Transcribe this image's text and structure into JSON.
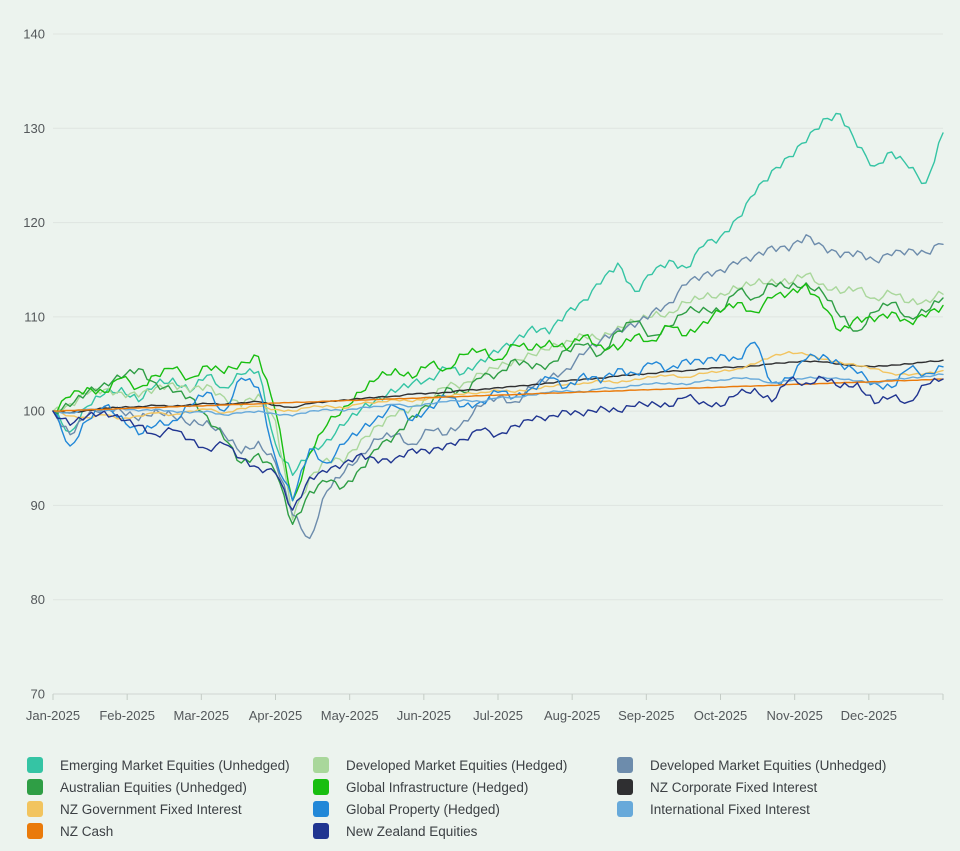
{
  "chart": {
    "background_color": "#ecf3ee",
    "grid_color": "#dfe5e0",
    "axis_line_color": "#cfd6d1",
    "tick_color": "#c4ccc6",
    "axis_label_color": "#54585b",
    "legend_label_color": "#3c4044"
  },
  "chart_data": {
    "type": "line",
    "title": "",
    "xlabel": "",
    "ylabel": "",
    "grid": "horizontal",
    "legend_position": "bottom",
    "ylim": [
      70,
      140
    ],
    "y_axis": {
      "min": 70,
      "max": 140,
      "step": 10,
      "tick_labels": [
        "140",
        "130",
        "120",
        "110",
        "100",
        "90",
        "80",
        "70"
      ]
    },
    "x_axis": {
      "tick_labels": [
        "Jan-2025",
        "Feb-2025",
        "Mar-2025",
        "Apr-2025",
        "May-2025",
        "Jun-2025",
        "Jul-2025",
        "Aug-2025",
        "Sep-2025",
        "Oct-2025",
        "Nov-2025",
        "Dec-2025"
      ]
    },
    "sampling": "weekly estimates, 53 points Jan-2025 through Dec-2025, index base 100",
    "series": [
      {
        "name": "Emerging Market Equities (Unhedged)",
        "color": "#35c4a4",
        "values": [
          100,
          97.8,
          100.5,
          101.8,
          102.5,
          101.0,
          102.8,
          103.5,
          102.0,
          103.8,
          102.5,
          103.9,
          104.2,
          96.5,
          93.2,
          95.5,
          97.0,
          98.5,
          100.2,
          101.5,
          102.0,
          103.0,
          103.5,
          104.5,
          104.0,
          105.5,
          106.2,
          107.5,
          109.0,
          108.2,
          110.5,
          111.8,
          113.5,
          115.7,
          112.7,
          114.5,
          116.0,
          115.2,
          117.5,
          118.5,
          120.5,
          123.0,
          125.5,
          127.0,
          128.5,
          131.0,
          131.5,
          128.0,
          126.0,
          127.5,
          125.8,
          124.2,
          129.5
        ]
      },
      {
        "name": "Developed Market Equities (Hedged)",
        "color": "#a9d79b",
        "values": [
          100,
          100.8,
          101.8,
          102.3,
          102.0,
          101.5,
          102.5,
          103.0,
          102.0,
          102.8,
          101.5,
          100.5,
          101.8,
          99.0,
          88.5,
          93.0,
          95.0,
          94.5,
          97.0,
          98.5,
          99.5,
          100.5,
          101.5,
          102.5,
          103.0,
          104.0,
          104.5,
          105.5,
          106.0,
          106.5,
          107.5,
          108.0,
          107.5,
          109.0,
          109.5,
          110.0,
          110.5,
          111.5,
          112.0,
          112.5,
          113.0,
          113.5,
          114.0,
          113.5,
          114.5,
          113.5,
          112.5,
          113.0,
          112.0,
          112.5,
          111.5,
          111.8,
          112.4
        ]
      },
      {
        "name": "Developed Market Equities (Unhedged)",
        "color": "#6d8cac",
        "values": [
          100,
          97.5,
          99.5,
          100.5,
          100.0,
          99.0,
          100.2,
          99.5,
          98.5,
          99.0,
          97.5,
          95.5,
          96.8,
          94.5,
          89.0,
          86.5,
          91.5,
          93.5,
          95.5,
          97.0,
          97.5,
          96.5,
          98.0,
          97.5,
          99.0,
          100.5,
          101.5,
          101.0,
          102.5,
          103.5,
          104.5,
          106.0,
          107.5,
          108.8,
          108.9,
          110.5,
          111.5,
          113.4,
          114.5,
          115.0,
          115.6,
          116.5,
          117.5,
          117.0,
          118.7,
          117.5,
          116.3,
          117.0,
          116.0,
          116.5,
          117.2,
          116.8,
          117.7
        ]
      },
      {
        "name": "Australian Equities (Unhedged)",
        "color": "#2f9e45",
        "values": [
          100,
          100.5,
          102.0,
          103.0,
          103.5,
          104.5,
          103.0,
          102.0,
          101.5,
          99.5,
          97.0,
          94.5,
          95.5,
          93.5,
          88.0,
          91.5,
          92.5,
          92.0,
          94.0,
          96.0,
          97.5,
          99.5,
          100.5,
          102.5,
          102.0,
          103.5,
          104.0,
          105.5,
          104.5,
          105.0,
          106.5,
          107.0,
          106.0,
          108.5,
          109.5,
          108.0,
          109.0,
          110.5,
          111.0,
          110.5,
          112.8,
          112.0,
          113.5,
          113.0,
          113.6,
          112.5,
          110.0,
          108.5,
          110.5,
          111.5,
          110.0,
          110.5,
          112.0
        ]
      },
      {
        "name": "Global Infrastructure (Hedged)",
        "color": "#18be10",
        "values": [
          100,
          101.5,
          102.5,
          102.0,
          103.5,
          102.5,
          103.8,
          104.5,
          103.5,
          104.8,
          104.0,
          105.2,
          105.8,
          100.0,
          90.5,
          95.5,
          98.5,
          100.5,
          102.0,
          103.5,
          104.5,
          103.5,
          105.0,
          104.5,
          106.0,
          106.4,
          105.5,
          107.0,
          106.5,
          107.5,
          106.5,
          108.0,
          107.0,
          106.5,
          108.0,
          107.5,
          109.0,
          108.0,
          109.5,
          110.5,
          111.5,
          110.5,
          112.0,
          112.5,
          113.5,
          111.0,
          108.5,
          110.0,
          109.5,
          110.5,
          109.5,
          110.0,
          111.2
        ]
      },
      {
        "name": "NZ Corporate Fixed Interest",
        "color": "#2f2f31",
        "values": [
          100,
          99.8,
          100.1,
          100.3,
          100.4,
          100.5,
          100.6,
          100.5,
          100.7,
          100.8,
          100.7,
          100.9,
          101.0,
          100.6,
          100.4,
          100.8,
          101.0,
          101.2,
          101.3,
          101.5,
          101.6,
          101.8,
          101.9,
          102.0,
          102.2,
          102.3,
          102.5,
          102.6,
          102.8,
          103.0,
          103.2,
          103.4,
          103.5,
          103.7,
          103.9,
          104.0,
          104.2,
          104.3,
          104.5,
          104.6,
          104.7,
          104.8,
          105.0,
          105.2,
          105.3,
          105.2,
          105.0,
          104.8,
          104.7,
          104.9,
          105.0,
          105.2,
          105.4
        ]
      },
      {
        "name": "NZ Government Fixed Interest",
        "color": "#f2c45f",
        "values": [
          100,
          99.5,
          99.3,
          99.6,
          99.2,
          99.5,
          99.8,
          99.6,
          100.0,
          100.2,
          99.8,
          100.3,
          100.5,
          100.2,
          100.0,
          100.4,
          100.6,
          100.3,
          100.8,
          101.0,
          101.2,
          101.0,
          101.4,
          101.6,
          101.8,
          102.0,
          102.2,
          102.0,
          102.4,
          102.6,
          102.8,
          103.0,
          103.2,
          103.0,
          103.4,
          103.6,
          103.8,
          103.6,
          104.0,
          104.2,
          104.5,
          105.0,
          105.8,
          106.3,
          106.0,
          105.5,
          105.2,
          104.8,
          104.5,
          104.0,
          103.8,
          104.0,
          104.3
        ]
      },
      {
        "name": "Global Property (Hedged)",
        "color": "#2288d8",
        "values": [
          100,
          96.3,
          99.0,
          100.5,
          99.5,
          97.5,
          98.5,
          99.0,
          100.5,
          102.0,
          100.0,
          103.5,
          102.5,
          95.0,
          90.5,
          96.0,
          94.5,
          96.5,
          98.0,
          99.5,
          100.5,
          99.0,
          100.5,
          101.5,
          100.5,
          101.0,
          102.0,
          101.5,
          102.5,
          103.5,
          102.5,
          104.0,
          103.0,
          104.5,
          104.0,
          105.0,
          104.5,
          105.5,
          105.0,
          106.0,
          105.5,
          107.3,
          103.0,
          103.5,
          105.5,
          106.0,
          105.0,
          104.0,
          103.0,
          102.5,
          104.5,
          104.0,
          104.7
        ]
      },
      {
        "name": "International Fixed Interest",
        "color": "#67a9da",
        "values": [
          100,
          99.8,
          100.2,
          100.0,
          100.3,
          100.0,
          100.2,
          100.0,
          99.8,
          100.0,
          99.6,
          99.8,
          100.0,
          99.7,
          99.5,
          100.0,
          100.2,
          100.0,
          100.4,
          100.5,
          100.7,
          100.5,
          100.8,
          101.0,
          101.2,
          101.0,
          101.4,
          101.5,
          101.7,
          102.0,
          102.2,
          102.0,
          102.4,
          102.5,
          102.7,
          102.9,
          103.0,
          102.8,
          103.2,
          103.3,
          103.5,
          103.4,
          103.0,
          103.2,
          103.5,
          103.6,
          103.4,
          103.2,
          103.0,
          103.3,
          103.5,
          103.7,
          103.9
        ]
      },
      {
        "name": "NZ Cash",
        "color": "#ea7a0a",
        "values": [
          100,
          100.07,
          100.13,
          100.2,
          100.26,
          100.33,
          100.39,
          100.46,
          100.52,
          100.59,
          100.65,
          100.72,
          100.78,
          100.85,
          100.92,
          100.98,
          101.05,
          101.11,
          101.18,
          101.24,
          101.31,
          101.37,
          101.44,
          101.5,
          101.57,
          101.63,
          101.7,
          101.76,
          101.83,
          101.9,
          101.96,
          102.03,
          102.09,
          102.16,
          102.22,
          102.29,
          102.35,
          102.42,
          102.48,
          102.55,
          102.61,
          102.68,
          102.74,
          102.81,
          102.87,
          102.94,
          103.0,
          103.07,
          103.13,
          103.2,
          103.26,
          103.33,
          103.4
        ]
      },
      {
        "name": "New Zealand Equities",
        "color": "#203590",
        "values": [
          100,
          98.5,
          99.5,
          100.0,
          99.0,
          98.5,
          97.5,
          98.0,
          97.0,
          96.0,
          96.5,
          95.0,
          94.0,
          93.4,
          89.5,
          93.0,
          93.5,
          94.5,
          95.5,
          94.5,
          95.0,
          96.0,
          95.5,
          96.5,
          97.0,
          98.0,
          97.5,
          98.5,
          99.0,
          99.5,
          100.0,
          99.5,
          100.5,
          100.0,
          100.5,
          101.0,
          100.5,
          101.5,
          101.0,
          100.5,
          101.8,
          102.4,
          101.0,
          103.3,
          103.0,
          103.5,
          102.5,
          103.0,
          100.8,
          101.5,
          101.0,
          102.8,
          103.4
        ]
      }
    ]
  }
}
